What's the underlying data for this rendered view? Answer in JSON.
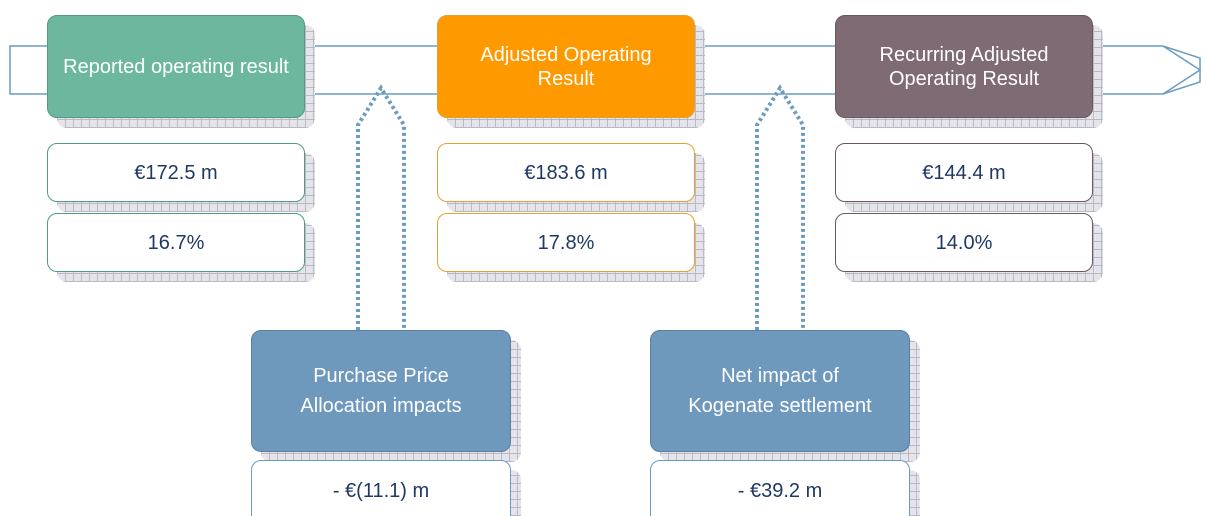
{
  "stages": [
    {
      "title": "Reported operating result",
      "value": "€172.5 m",
      "margin": "16.7%",
      "color": "#6db79f",
      "border": "#4f9c83"
    },
    {
      "title": "Adjusted Operating Result",
      "value": "€183.6 m",
      "margin": "17.8%",
      "color": "#ff9900",
      "border": "#e8a030"
    },
    {
      "title": "Recurring Adjusted Operating Result",
      "value": "€144.4 m",
      "margin": "14.0%",
      "color": "#7f6b73",
      "border": "#6b5860"
    }
  ],
  "adjustments": [
    {
      "label": "Purchase Price Allocation impacts",
      "value": "- €(11.1) m"
    },
    {
      "label": "Net impact of Kogenate settlement",
      "value": "- €39.2 m"
    }
  ]
}
